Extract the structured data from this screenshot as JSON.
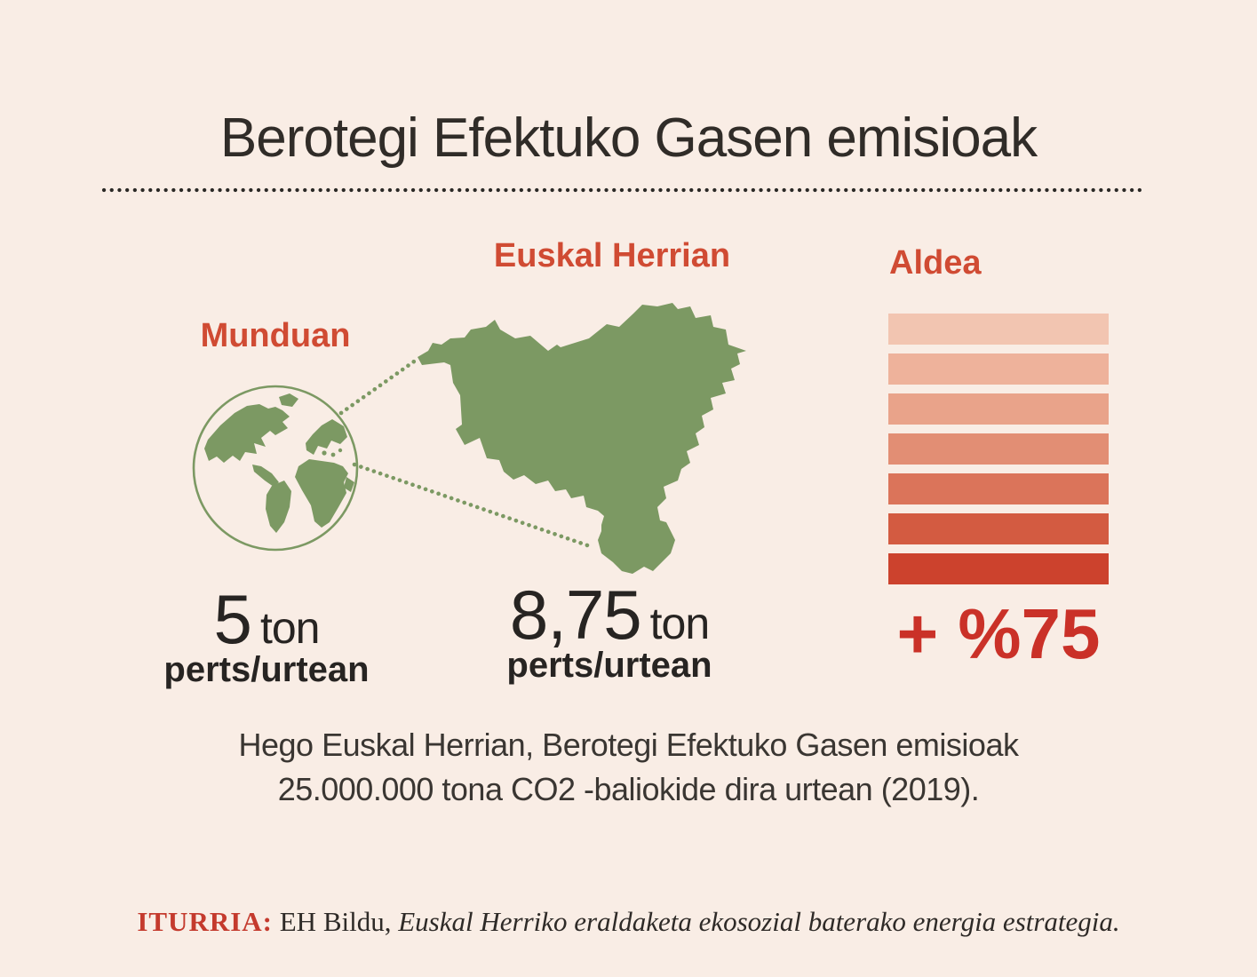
{
  "page": {
    "background": "#f9ede5"
  },
  "header": {
    "title": "Berotegi Efektuko Gasen emisioak"
  },
  "world": {
    "label": "Munduan",
    "value": "5",
    "unit": "ton",
    "sub": "perts/urtean"
  },
  "basque": {
    "label": "Euskal Herrian",
    "value": "8,75",
    "unit": "ton",
    "sub": "perts/urtean"
  },
  "aldea": {
    "label": "Aldea",
    "delta": "+ %75",
    "bar_colors": [
      "#f2c5b1",
      "#eeb29b",
      "#e9a38a",
      "#e28e74",
      "#db745a",
      "#d35b41",
      "#cc422d"
    ]
  },
  "body": {
    "line1": "Hego Euskal Herrian, Berotegi Efektuko Gasen emisioak",
    "line2": "25.000.000 tona CO2 -baliokide dira urtean (2019)."
  },
  "footer": {
    "source_label": "ITURRIA:",
    "source_name": " EH Bildu, ",
    "source_title": "Euskal Herriko eraldaketa ekosozial baterako energia estrategia."
  },
  "colors": {
    "background": "#f9ede5",
    "accent_red": "#d04b33",
    "delta_red": "#ca3128",
    "source_red": "#c43a2d",
    "map_green": "#7c9963",
    "text_dark": "#302c28"
  },
  "icons": {
    "globe": "globe-icon",
    "map": "basque-country-map"
  },
  "chart_data": {
    "type": "bar",
    "title": "Berotegi Efektuko Gasen emisioak",
    "categories": [
      "Munduan",
      "Euskal Herrian"
    ],
    "values": [
      5,
      8.75
    ],
    "unit": "ton perts/urtean",
    "difference": "+ %75",
    "difference_section_label": "Aldea",
    "aldea_gradient_bar_count": 7,
    "aldea_gradient_colors": [
      "#f2c5b1",
      "#eeb29b",
      "#e9a38a",
      "#e28e74",
      "#db745a",
      "#d35b41",
      "#cc422d"
    ],
    "annotations": [
      "Hego Euskal Herrian, Berotegi Efektuko Gasen emisioak 25.000.000 tona CO2 -baliokide dira urtean (2019).",
      "ITURRIA: EH Bildu, Euskal Herriko eraldaketa ekosozial baterako energia estrategia."
    ],
    "legend_position": "none",
    "grid": false
  }
}
